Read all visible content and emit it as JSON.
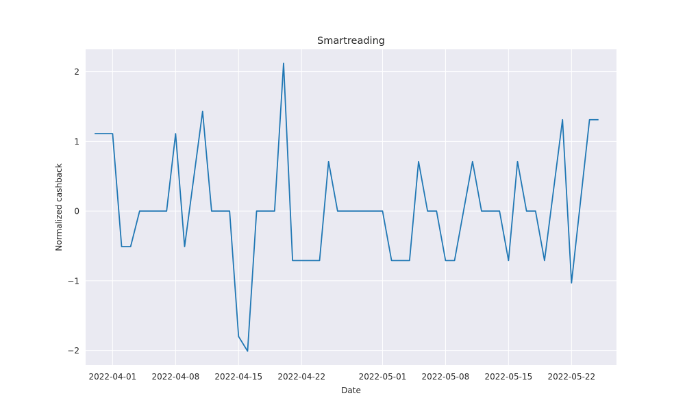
{
  "chart_data": {
    "type": "line",
    "title": "Smartreading",
    "xlabel": "Date",
    "ylabel": "Normalized cashback",
    "x_tick_labels": [
      "2022-04-01",
      "2022-04-08",
      "2022-04-15",
      "2022-04-22",
      "2022-05-01",
      "2022-05-08",
      "2022-05-15",
      "2022-05-22"
    ],
    "y_ticks": [
      -2,
      -1,
      0,
      1,
      2
    ],
    "y_tick_labels": [
      "−2",
      "−1",
      "0",
      "1",
      "2"
    ],
    "xlim": [
      "2022-03-29",
      "2022-05-27"
    ],
    "ylim": [
      -2.21,
      2.32
    ],
    "grid": true,
    "style": {
      "background": "#eaeaf2",
      "grid_color": "#ffffff",
      "line_color": "#1f77b4"
    },
    "series": [
      {
        "x": [
          "2022-03-30",
          "2022-03-31",
          "2022-04-01",
          "2022-04-02",
          "2022-04-03",
          "2022-04-04",
          "2022-04-05",
          "2022-04-06",
          "2022-04-07",
          "2022-04-08",
          "2022-04-09",
          "2022-04-10",
          "2022-04-11",
          "2022-04-12",
          "2022-04-13",
          "2022-04-14",
          "2022-04-15",
          "2022-04-16",
          "2022-04-17",
          "2022-04-18",
          "2022-04-19",
          "2022-04-20",
          "2022-04-21",
          "2022-04-22",
          "2022-04-23",
          "2022-04-24",
          "2022-04-25",
          "2022-04-26",
          "2022-04-27",
          "2022-04-28",
          "2022-04-29",
          "2022-04-30",
          "2022-05-01",
          "2022-05-02",
          "2022-05-03",
          "2022-05-04",
          "2022-05-05",
          "2022-05-06",
          "2022-05-07",
          "2022-05-08",
          "2022-05-09",
          "2022-05-10",
          "2022-05-11",
          "2022-05-12",
          "2022-05-13",
          "2022-05-14",
          "2022-05-15",
          "2022-05-16",
          "2022-05-17",
          "2022-05-18",
          "2022-05-19",
          "2022-05-20",
          "2022-05-21",
          "2022-05-22",
          "2022-05-23",
          "2022-05-24",
          "2022-05-25"
        ],
        "y": [
          1.11,
          1.11,
          1.11,
          -0.51,
          -0.51,
          0,
          0,
          0,
          0,
          1.11,
          -0.51,
          0.46,
          1.43,
          0,
          0,
          0,
          -1.8,
          -2.01,
          0,
          0,
          0,
          2.12,
          -0.71,
          -0.71,
          -0.71,
          -0.71,
          0.71,
          0,
          0,
          0,
          0,
          0,
          0,
          -0.71,
          -0.71,
          -0.71,
          0.71,
          0,
          0,
          -0.71,
          -0.71,
          0,
          0.71,
          0,
          0,
          0,
          -0.71,
          0.71,
          0,
          0,
          -0.71,
          0.3,
          1.31,
          -1.03,
          0.14,
          1.31,
          1.31
        ]
      }
    ]
  }
}
